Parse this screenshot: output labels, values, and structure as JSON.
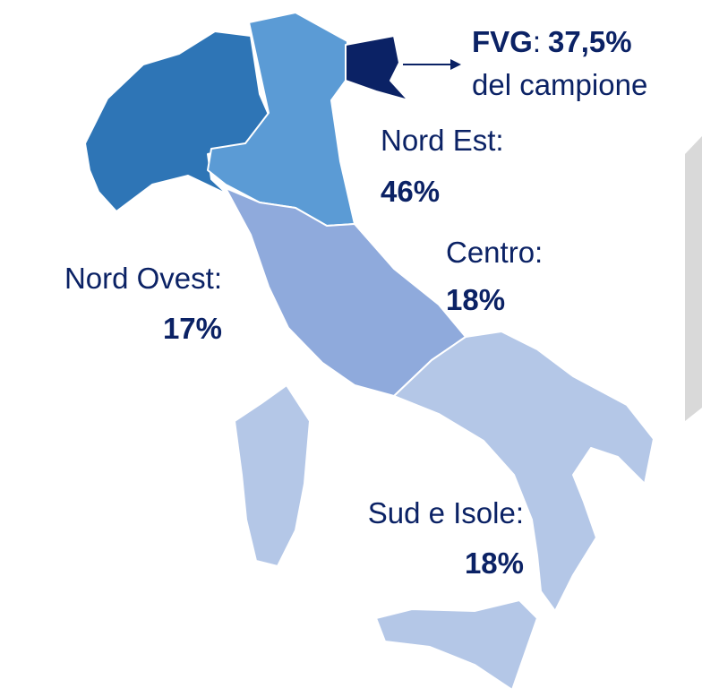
{
  "callout": {
    "region": "FVG",
    "separator": ":",
    "value": "37,5%",
    "note": "del campione",
    "color": "#0b2265"
  },
  "regions": [
    {
      "name": "Nord Ovest:",
      "value": "17%",
      "color": "#2e75b6"
    },
    {
      "name": "Nord Est:",
      "value": "46%",
      "color": "#5b9bd5"
    },
    {
      "name": "Centro:",
      "value": "18%",
      "color": "#8faadc"
    },
    {
      "name": "Sud e Isole:",
      "value": "18%",
      "color": "#b4c7e7"
    }
  ]
}
